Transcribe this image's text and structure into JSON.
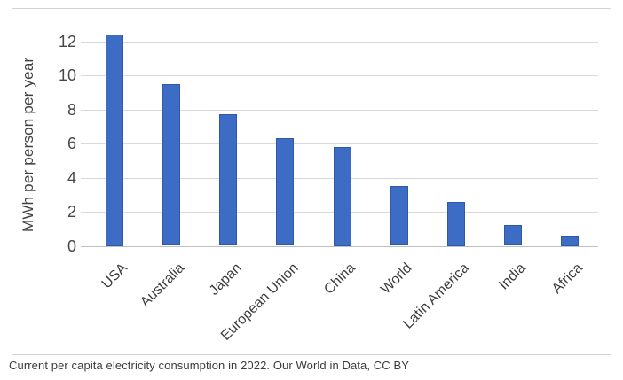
{
  "chart_data": {
    "type": "bar",
    "categories": [
      "USA",
      "Australia",
      "Japan",
      "European Union",
      "China",
      "World",
      "Latin America",
      "India",
      "Africa"
    ],
    "values": [
      12.4,
      9.5,
      7.7,
      6.3,
      5.8,
      3.5,
      2.6,
      1.2,
      0.6
    ],
    "title": "",
    "xlabel": "",
    "ylabel": "MWh per person per year",
    "ylim": [
      0,
      12.9
    ],
    "yticks": [
      0,
      2,
      4,
      6,
      8,
      10,
      12
    ],
    "grid": true,
    "legend": "none",
    "bar_fill_color": "#3D6CC4",
    "bar_border_color": "#2E59A8",
    "gridline_color": "#D9D9D9",
    "baseline_color": "#BFBFBF",
    "axis_text_color": "#474747",
    "frame_border_color": "#D2D2D2"
  },
  "caption": "Current per capita electricity consumption in 2022. Our World in Data, CC BY"
}
